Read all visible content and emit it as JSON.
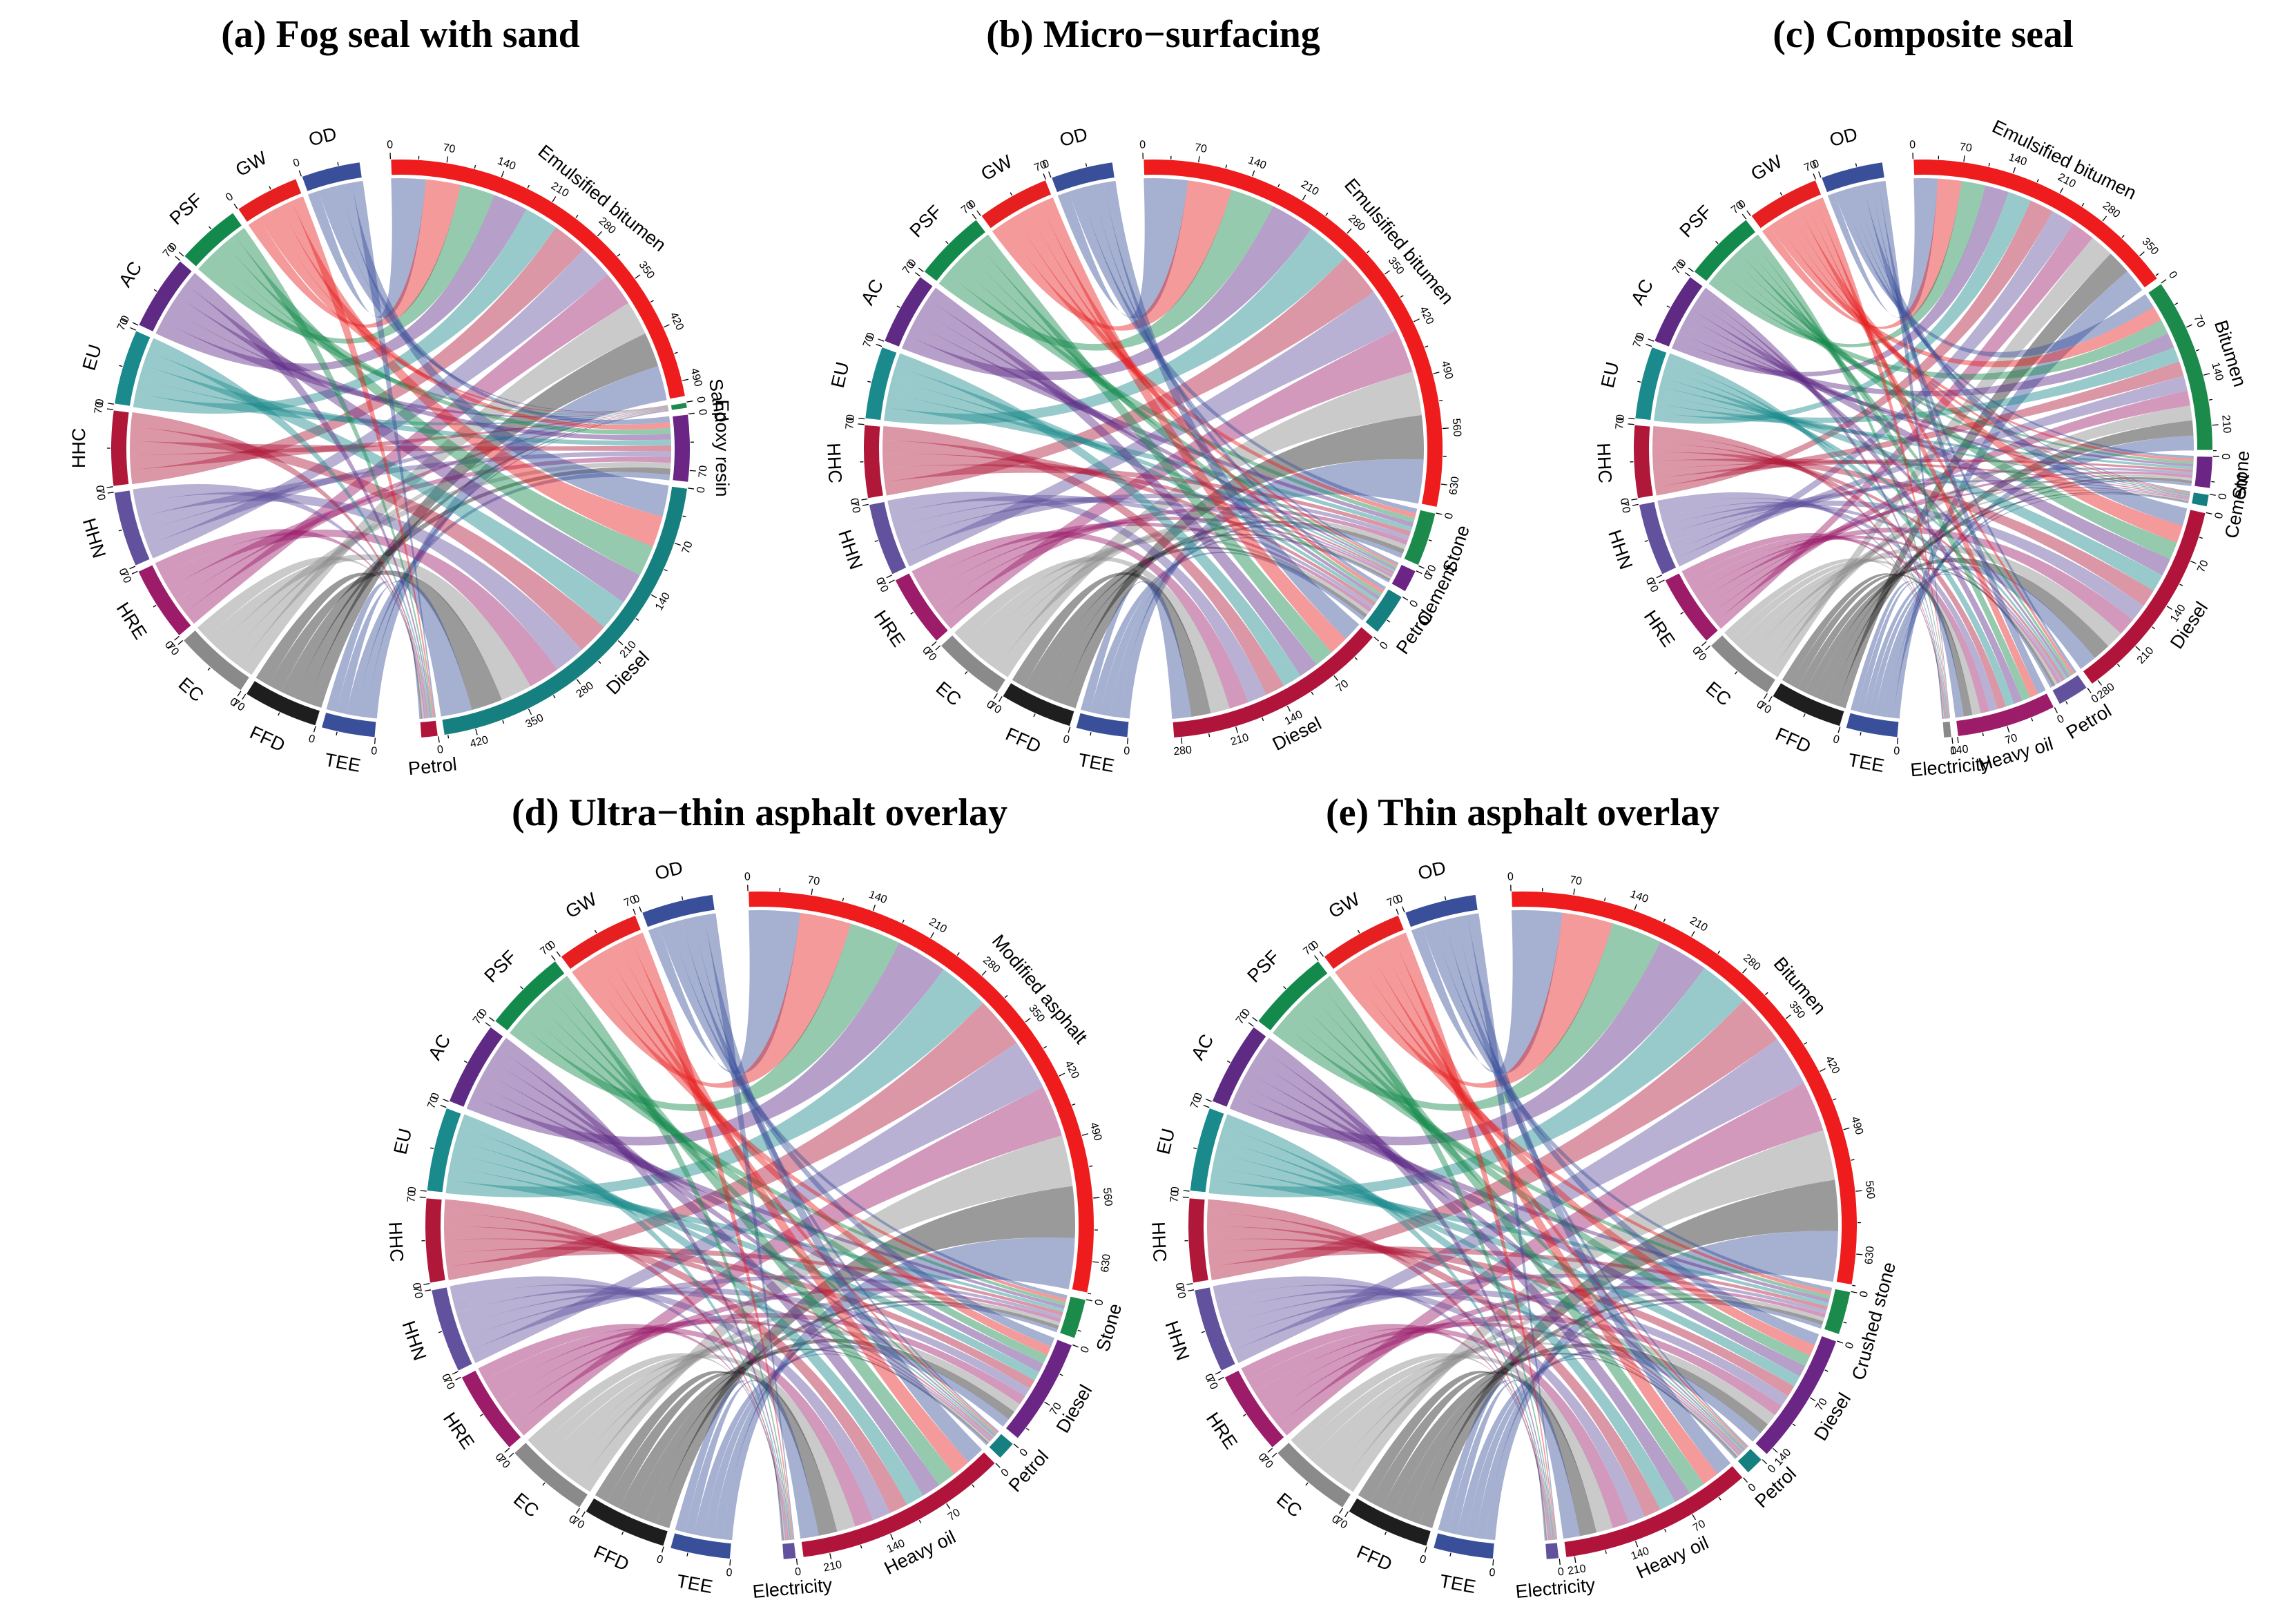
{
  "figure": {
    "type": "chord",
    "tick_step": 70
  },
  "impact_colors": {
    "TEE": "#3a4f9a",
    "FFD": "#1e1e1e",
    "EC": "#8a8a8a",
    "HRE": "#9c1c6a",
    "HHN": "#62529e",
    "HHC": "#b0183a",
    "EU": "#1a8a8c",
    "AC": "#5e2a84",
    "PSF": "#138a4c",
    "GW": "#e62020",
    "OD": "#3a4f9a"
  },
  "chart_data": [
    {
      "type": "chord",
      "title": "(a) Fog seal with sand",
      "sources": [
        {
          "name": "Emulsified bitumen",
          "value": 510,
          "color": "#ee1c1c"
        },
        {
          "name": "Sand",
          "value": 8,
          "color": "#1b8a4a"
        },
        {
          "name": "Epoxy resin",
          "value": 85,
          "color": "#6a2585"
        },
        {
          "name": "Diesel",
          "value": 460,
          "color": "#15807f"
        },
        {
          "name": "Petrol",
          "value": 22,
          "color": "#b0143a"
        }
      ],
      "targets": [
        {
          "name": "OD",
          "value": 55
        },
        {
          "name": "GW",
          "value": 60
        },
        {
          "name": "PSF",
          "value": 60
        },
        {
          "name": "AC",
          "value": 70
        },
        {
          "name": "EU",
          "value": 70
        },
        {
          "name": "HHC",
          "value": 70
        },
        {
          "name": "HHN",
          "value": 70
        },
        {
          "name": "HRE",
          "value": 70
        },
        {
          "name": "EC",
          "value": 70
        },
        {
          "name": "FFD",
          "value": 70
        },
        {
          "name": "TEE",
          "value": 50
        }
      ]
    },
    {
      "type": "chord",
      "title": "(b) Micro−surfacing",
      "sources": [
        {
          "name": "Emulsified bitumen",
          "value": 660,
          "color": "#ee1c1c"
        },
        {
          "name": "Stone",
          "value": 70,
          "color": "#1b8a4a"
        },
        {
          "name": "Cement",
          "value": 30,
          "color": "#6a2585"
        },
        {
          "name": "Petrol",
          "value": 55,
          "color": "#15807f"
        },
        {
          "name": "Diesel",
          "value": 290,
          "color": "#b0143a"
        }
      ],
      "targets": [
        {
          "name": "OD",
          "value": 60
        },
        {
          "name": "GW",
          "value": 70
        },
        {
          "name": "PSF",
          "value": 70
        },
        {
          "name": "AC",
          "value": 70
        },
        {
          "name": "EU",
          "value": 70
        },
        {
          "name": "HHC",
          "value": 70
        },
        {
          "name": "HHN",
          "value": 70
        },
        {
          "name": "HRE",
          "value": 70
        },
        {
          "name": "EC",
          "value": 70
        },
        {
          "name": "FFD",
          "value": 70
        },
        {
          "name": "TEE",
          "value": 50
        }
      ]
    },
    {
      "type": "chord",
      "title": "(c) Composite seal",
      "sources": [
        {
          "name": "Emulsified bitumen",
          "value": 390,
          "color": "#ee1c1c"
        },
        {
          "name": "Bitumen",
          "value": 245,
          "color": "#1b8a4a"
        },
        {
          "name": "Stone",
          "value": 45,
          "color": "#6a2585"
        },
        {
          "name": "Cement",
          "value": 18,
          "color": "#15807f"
        },
        {
          "name": "Diesel",
          "value": 290,
          "color": "#b0143a"
        },
        {
          "name": "Petrol",
          "value": 45,
          "color": "#62529e"
        },
        {
          "name": "Heavy oil",
          "value": 140,
          "color": "#9c1c6a"
        },
        {
          "name": "Electricity",
          "value": 12,
          "color": "#8a8a8a"
        }
      ],
      "targets": [
        {
          "name": "OD",
          "value": 60
        },
        {
          "name": "GW",
          "value": 70
        },
        {
          "name": "PSF",
          "value": 70
        },
        {
          "name": "AC",
          "value": 70
        },
        {
          "name": "EU",
          "value": 70
        },
        {
          "name": "HHC",
          "value": 70
        },
        {
          "name": "HHN",
          "value": 70
        },
        {
          "name": "HRE",
          "value": 70
        },
        {
          "name": "EC",
          "value": 70
        },
        {
          "name": "FFD",
          "value": 70
        },
        {
          "name": "TEE",
          "value": 50
        }
      ]
    },
    {
      "type": "chord",
      "title": "(d) Ultra−thin asphalt overlay",
      "sources": [
        {
          "name": "Modified asphalt",
          "value": 665,
          "color": "#ee1c1c"
        },
        {
          "name": "Stone",
          "value": 45,
          "color": "#1b8a4a"
        },
        {
          "name": "Diesel",
          "value": 120,
          "color": "#6a2585"
        },
        {
          "name": "Petrol",
          "value": 22,
          "color": "#15807f"
        },
        {
          "name": "Heavy oil",
          "value": 240,
          "color": "#b0143a"
        },
        {
          "name": "Electricity",
          "value": 15,
          "color": "#62529e"
        }
      ],
      "targets": [
        {
          "name": "OD",
          "value": 60
        },
        {
          "name": "GW",
          "value": 70
        },
        {
          "name": "PSF",
          "value": 70
        },
        {
          "name": "AC",
          "value": 70
        },
        {
          "name": "EU",
          "value": 70
        },
        {
          "name": "HHC",
          "value": 70
        },
        {
          "name": "HHN",
          "value": 70
        },
        {
          "name": "HRE",
          "value": 70
        },
        {
          "name": "EC",
          "value": 70
        },
        {
          "name": "FFD",
          "value": 70
        },
        {
          "name": "TEE",
          "value": 50
        }
      ]
    },
    {
      "type": "chord",
      "title": "(e) Thin asphalt overlay",
      "sources": [
        {
          "name": "Bitumen",
          "value": 665,
          "color": "#ee1c1c"
        },
        {
          "name": "Crushed stone",
          "value": 50,
          "color": "#1b8a4a"
        },
        {
          "name": "Diesel",
          "value": 150,
          "color": "#6a2585"
        },
        {
          "name": "Petrol",
          "value": 22,
          "color": "#15807f"
        },
        {
          "name": "Heavy oil",
          "value": 220,
          "color": "#b0143a"
        },
        {
          "name": "Electricity",
          "value": 15,
          "color": "#62529e"
        }
      ],
      "targets": [
        {
          "name": "OD",
          "value": 60
        },
        {
          "name": "GW",
          "value": 70
        },
        {
          "name": "PSF",
          "value": 70
        },
        {
          "name": "AC",
          "value": 70
        },
        {
          "name": "EU",
          "value": 70
        },
        {
          "name": "HHC",
          "value": 70
        },
        {
          "name": "HHN",
          "value": 70
        },
        {
          "name": "HRE",
          "value": 70
        },
        {
          "name": "EC",
          "value": 70
        },
        {
          "name": "FFD",
          "value": 70
        },
        {
          "name": "TEE",
          "value": 50
        }
      ]
    }
  ]
}
